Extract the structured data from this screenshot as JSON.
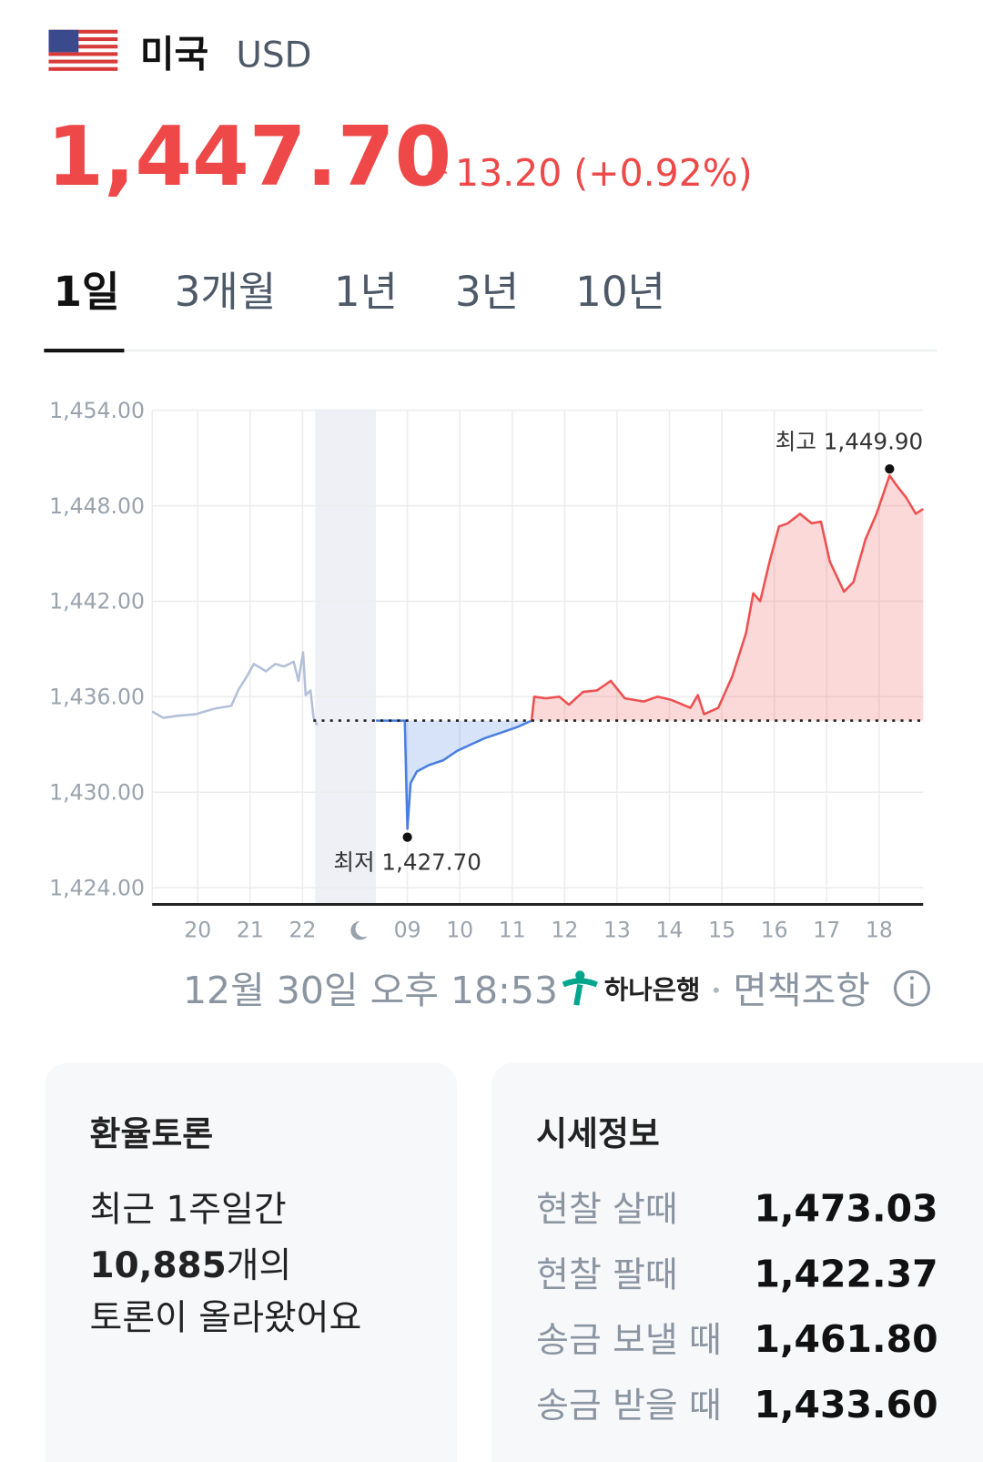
{
  "header": {
    "country": "미국",
    "currency": "USD",
    "price": "1,447.70",
    "change": "13.20 (+0.92%)"
  },
  "tabs": [
    "1일",
    "3개월",
    "1년",
    "3년",
    "10년"
  ],
  "chart_data": {
    "type": "line",
    "ylim": [
      1422.95,
      1454
    ],
    "yticks": [
      {
        "value": 1454,
        "label": "1,454.00"
      },
      {
        "value": 1448,
        "label": "1,448.00"
      },
      {
        "value": 1442,
        "label": "1,442.00"
      },
      {
        "value": 1436,
        "label": "1,436.00"
      },
      {
        "value": 1430,
        "label": "1,430.00"
      },
      {
        "value": 1424,
        "label": "1,424.00"
      }
    ],
    "xlim": [
      -0.87,
      13.84
    ],
    "xticks": [
      {
        "value": 0,
        "label": "20"
      },
      {
        "value": 1,
        "label": "21"
      },
      {
        "value": 2,
        "label": "22"
      },
      {
        "value": 4,
        "label": "09"
      },
      {
        "value": 5,
        "label": "10"
      },
      {
        "value": 6,
        "label": "11"
      },
      {
        "value": 7,
        "label": "12"
      },
      {
        "value": 8,
        "label": "13"
      },
      {
        "value": 9,
        "label": "14"
      },
      {
        "value": 10,
        "label": "15"
      },
      {
        "value": 11,
        "label": "16"
      },
      {
        "value": 12,
        "label": "17"
      },
      {
        "value": 13,
        "label": "18"
      }
    ],
    "shaded_xrange": [
      2.24,
      3.4
    ],
    "reference_line": 1434.5,
    "grid": true,
    "series": [
      {
        "color": "#b3c0d8",
        "fill": false,
        "x": [
          -0.87,
          -0.66,
          -0.39,
          -0.04,
          0.32,
          0.64,
          0.77,
          0.94,
          1.07,
          1.3,
          1.48,
          1.65,
          1.83,
          1.92,
          2.01,
          2.06,
          2.15,
          2.21,
          2.28
        ],
        "values": [
          1435.08,
          1434.67,
          1434.8,
          1434.9,
          1435.25,
          1435.43,
          1436.4,
          1437.3,
          1438.06,
          1437.6,
          1438.06,
          1437.9,
          1438.2,
          1437,
          1438.8,
          1436.1,
          1436.4,
          1434.67,
          1434.2
        ]
      },
      {
        "color": "#4a7fe0",
        "fill": true,
        "x": [
          3.4,
          3.95,
          4,
          4.06,
          4.18,
          4.41,
          4.68,
          4.95,
          5.21,
          5.48,
          5.84,
          6.1,
          6.37
        ],
        "values": [
          1434.5,
          1434.5,
          1427.7,
          1430.57,
          1431.3,
          1431.7,
          1432,
          1432.6,
          1433,
          1433.4,
          1433.8,
          1434.1,
          1434.5
        ]
      },
      {
        "color": "#ee5050",
        "fill": true,
        "x": [
          6.37,
          6.42,
          6.64,
          6.9,
          7.08,
          7.35,
          7.62,
          7.88,
          8.15,
          8.51,
          8.77,
          9.04,
          9.4,
          9.54,
          9.66,
          9.93,
          10.2,
          10.46,
          10.6,
          10.73,
          10.91,
          11.09,
          11.26,
          11.49,
          11.71,
          11.89,
          12.06,
          12.33,
          12.51,
          12.74,
          12.95,
          13.2,
          13.35,
          13.52,
          13.7,
          13.84
        ],
        "values": [
          1434.5,
          1436,
          1435.9,
          1436,
          1435.5,
          1436.3,
          1436.4,
          1437,
          1435.9,
          1435.7,
          1436,
          1435.8,
          1435.3,
          1436.1,
          1434.9,
          1435.3,
          1437.3,
          1440,
          1442.5,
          1442,
          1444.5,
          1446.7,
          1446.9,
          1447.5,
          1446.9,
          1447,
          1444.5,
          1442.6,
          1443.2,
          1445.9,
          1447.5,
          1449.9,
          1449.2,
          1448.5,
          1447.5,
          1447.8
        ]
      }
    ],
    "annotations": [
      {
        "text": "최고 1,449.90",
        "x": 13.2,
        "y": 1449.9
      },
      {
        "text": "최저 1,427.70",
        "x": 4,
        "y": 1427.7
      }
    ]
  },
  "footer": {
    "timestamp": "12월 30일 오후 18:53",
    "bank": "하나은행",
    "disclaimer": "면책조항"
  },
  "discussion": {
    "title": "환율토론",
    "line1": "최근 1주일간",
    "count": "10,885",
    "count_suffix": "개의",
    "line3": "토론이 올라왔어요"
  },
  "quotes": {
    "title": "시세정보",
    "rows": [
      [
        "현찰 살때",
        "1,473.03"
      ],
      [
        "현찰 팔때",
        "1,422.37"
      ],
      [
        "송금 보낼 때",
        "1,461.80"
      ],
      [
        "송금 받을 때",
        "1,433.60"
      ]
    ]
  }
}
